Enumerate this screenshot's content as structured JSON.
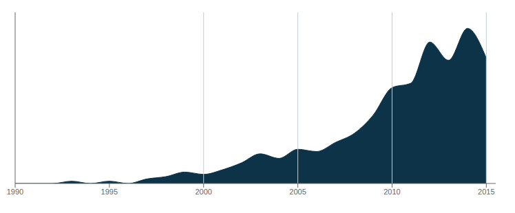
{
  "chart_data": {
    "type": "area",
    "x": [
      1990,
      1991,
      1992,
      1993,
      1994,
      1995,
      1996,
      1997,
      1998,
      1999,
      2000,
      2001,
      2002,
      2003,
      2004,
      2005,
      2006,
      2007,
      2008,
      2009,
      2010,
      2011,
      2012,
      2013,
      2014,
      2015
    ],
    "values": [
      0,
      0,
      0,
      1,
      0,
      1,
      0,
      2,
      3,
      5,
      4,
      6,
      9,
      13,
      11,
      15,
      14,
      18,
      22,
      30,
      42,
      44,
      62,
      54,
      68,
      55
    ],
    "color": "#0d3349",
    "xlim": [
      1990,
      2015.5
    ],
    "xticks": [
      1990,
      1995,
      2000,
      2005,
      2010,
      2015
    ],
    "ylim": [
      0,
      75
    ],
    "tick_labels": "x",
    "grid": false,
    "vlines": {
      "values": [
        2000,
        2005,
        2010,
        2015
      ],
      "color": "#c0cdd4"
    }
  }
}
